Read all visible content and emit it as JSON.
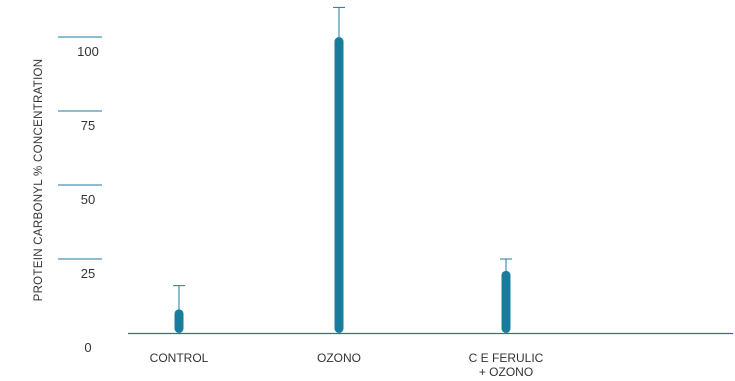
{
  "chart_data": {
    "type": "bar",
    "title": "",
    "xlabel": "",
    "ylabel": "PROTEIN CARBONYL % CONCENTRATION",
    "categories": [
      [
        "CONTROL"
      ],
      [
        "OZONO"
      ],
      [
        "C E FERULIC",
        "+ OZONO"
      ]
    ],
    "values": [
      8,
      100,
      21
    ],
    "error_upper": [
      16,
      110,
      25
    ],
    "yticks": [
      0,
      25,
      50,
      75,
      100
    ],
    "ylim": [
      0,
      110
    ],
    "grid": false,
    "legend": "none",
    "colors": {
      "bar": "#1a7c9c",
      "axis": "#1a7c9c",
      "text": "#333333"
    }
  }
}
